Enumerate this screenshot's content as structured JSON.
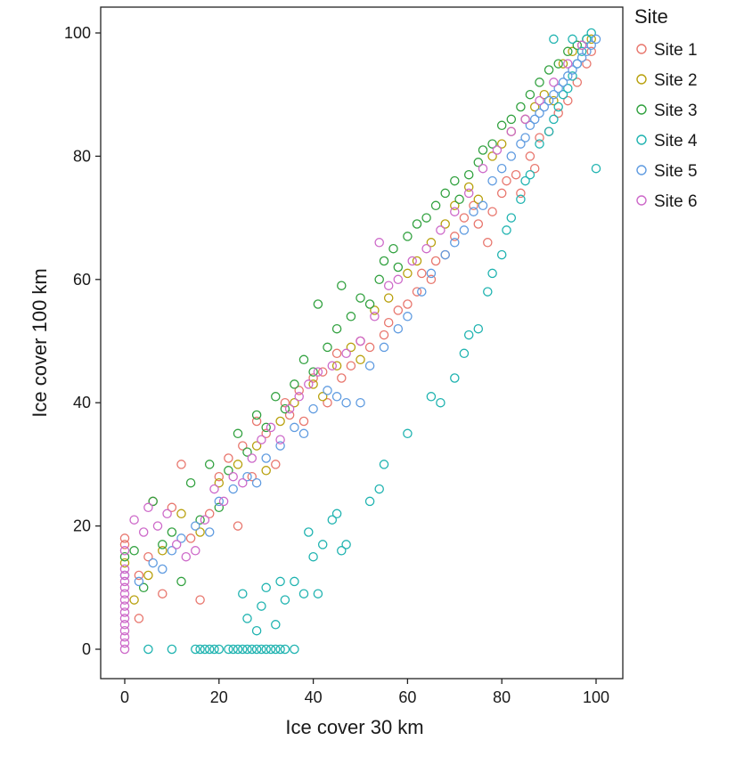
{
  "chart_data": {
    "type": "scatter",
    "xlabel": "Ice cover 30 km",
    "ylabel": "Ice cover 100 km",
    "xlim": [
      -5,
      105
    ],
    "ylim": [
      -5,
      105
    ],
    "xticks": [
      "0",
      "20",
      "40",
      "60",
      "80",
      "100"
    ],
    "yticks": [
      "0",
      "20",
      "40",
      "60",
      "80",
      "100"
    ],
    "grid": false,
    "marker": "open-circle",
    "legend": {
      "title": "Site",
      "placement": "right"
    },
    "series": [
      {
        "name": "Site 1",
        "color": "#e8766d",
        "points": [
          [
            0,
            18
          ],
          [
            0,
            17
          ],
          [
            3,
            12
          ],
          [
            3,
            5
          ],
          [
            5,
            15
          ],
          [
            6,
            24
          ],
          [
            8,
            9
          ],
          [
            10,
            23
          ],
          [
            12,
            30
          ],
          [
            14,
            18
          ],
          [
            16,
            8
          ],
          [
            18,
            22
          ],
          [
            20,
            28
          ],
          [
            22,
            31
          ],
          [
            24,
            20
          ],
          [
            25,
            33
          ],
          [
            27,
            28
          ],
          [
            28,
            37
          ],
          [
            30,
            35
          ],
          [
            32,
            30
          ],
          [
            34,
            40
          ],
          [
            35,
            38
          ],
          [
            37,
            42
          ],
          [
            38,
            37
          ],
          [
            40,
            44
          ],
          [
            42,
            45
          ],
          [
            43,
            40
          ],
          [
            45,
            48
          ],
          [
            46,
            44
          ],
          [
            48,
            46
          ],
          [
            50,
            50
          ],
          [
            52,
            49
          ],
          [
            55,
            51
          ],
          [
            56,
            53
          ],
          [
            58,
            55
          ],
          [
            60,
            56
          ],
          [
            62,
            58
          ],
          [
            63,
            61
          ],
          [
            65,
            60
          ],
          [
            66,
            63
          ],
          [
            68,
            64
          ],
          [
            70,
            67
          ],
          [
            72,
            70
          ],
          [
            74,
            72
          ],
          [
            75,
            69
          ],
          [
            77,
            66
          ],
          [
            78,
            71
          ],
          [
            80,
            74
          ],
          [
            81,
            76
          ],
          [
            83,
            77
          ],
          [
            84,
            74
          ],
          [
            86,
            80
          ],
          [
            87,
            78
          ],
          [
            88,
            83
          ],
          [
            90,
            84
          ],
          [
            92,
            87
          ],
          [
            94,
            89
          ],
          [
            96,
            92
          ],
          [
            98,
            95
          ],
          [
            99,
            97
          ]
        ]
      },
      {
        "name": "Site 2",
        "color": "#b8a00c",
        "points": [
          [
            0,
            14
          ],
          [
            2,
            8
          ],
          [
            5,
            12
          ],
          [
            8,
            16
          ],
          [
            12,
            22
          ],
          [
            16,
            19
          ],
          [
            20,
            27
          ],
          [
            24,
            30
          ],
          [
            28,
            33
          ],
          [
            30,
            29
          ],
          [
            33,
            37
          ],
          [
            36,
            40
          ],
          [
            40,
            43
          ],
          [
            42,
            41
          ],
          [
            45,
            46
          ],
          [
            48,
            49
          ],
          [
            50,
            47
          ],
          [
            53,
            55
          ],
          [
            56,
            57
          ],
          [
            60,
            61
          ],
          [
            62,
            63
          ],
          [
            65,
            66
          ],
          [
            68,
            69
          ],
          [
            70,
            72
          ],
          [
            73,
            75
          ],
          [
            75,
            73
          ],
          [
            78,
            80
          ],
          [
            80,
            82
          ],
          [
            82,
            84
          ],
          [
            85,
            86
          ],
          [
            87,
            88
          ],
          [
            89,
            90
          ],
          [
            91,
            89
          ],
          [
            93,
            95
          ],
          [
            95,
            97
          ],
          [
            97,
            98
          ],
          [
            99,
            99
          ]
        ]
      },
      {
        "name": "Site 3",
        "color": "#31a13f",
        "points": [
          [
            0,
            15
          ],
          [
            2,
            16
          ],
          [
            4,
            10
          ],
          [
            6,
            24
          ],
          [
            8,
            17
          ],
          [
            10,
            19
          ],
          [
            12,
            11
          ],
          [
            14,
            27
          ],
          [
            16,
            21
          ],
          [
            18,
            30
          ],
          [
            20,
            23
          ],
          [
            22,
            29
          ],
          [
            24,
            35
          ],
          [
            26,
            32
          ],
          [
            28,
            38
          ],
          [
            30,
            36
          ],
          [
            32,
            41
          ],
          [
            34,
            39
          ],
          [
            36,
            43
          ],
          [
            38,
            47
          ],
          [
            40,
            45
          ],
          [
            41,
            56
          ],
          [
            43,
            49
          ],
          [
            45,
            52
          ],
          [
            46,
            59
          ],
          [
            48,
            54
          ],
          [
            50,
            57
          ],
          [
            52,
            56
          ],
          [
            54,
            60
          ],
          [
            55,
            63
          ],
          [
            57,
            65
          ],
          [
            58,
            62
          ],
          [
            60,
            67
          ],
          [
            62,
            69
          ],
          [
            64,
            70
          ],
          [
            66,
            72
          ],
          [
            68,
            74
          ],
          [
            70,
            76
          ],
          [
            71,
            73
          ],
          [
            73,
            77
          ],
          [
            75,
            79
          ],
          [
            76,
            81
          ],
          [
            78,
            82
          ],
          [
            80,
            85
          ],
          [
            82,
            86
          ],
          [
            84,
            88
          ],
          [
            86,
            90
          ],
          [
            88,
            92
          ],
          [
            90,
            94
          ],
          [
            92,
            95
          ],
          [
            94,
            97
          ],
          [
            96,
            98
          ],
          [
            98,
            99
          ]
        ]
      },
      {
        "name": "Site 4",
        "color": "#1fb3b0",
        "points": [
          [
            5,
            0
          ],
          [
            10,
            0
          ],
          [
            15,
            0
          ],
          [
            16,
            0
          ],
          [
            17,
            0
          ],
          [
            18,
            0
          ],
          [
            19,
            0
          ],
          [
            20,
            0
          ],
          [
            22,
            0
          ],
          [
            23,
            0
          ],
          [
            24,
            0
          ],
          [
            25,
            0
          ],
          [
            26,
            0
          ],
          [
            27,
            0
          ],
          [
            28,
            0
          ],
          [
            29,
            0
          ],
          [
            30,
            0
          ],
          [
            31,
            0
          ],
          [
            32,
            0
          ],
          [
            33,
            0
          ],
          [
            34,
            0
          ],
          [
            36,
            0
          ],
          [
            25,
            9
          ],
          [
            26,
            5
          ],
          [
            28,
            3
          ],
          [
            29,
            7
          ],
          [
            30,
            10
          ],
          [
            32,
            4
          ],
          [
            33,
            11
          ],
          [
            34,
            8
          ],
          [
            36,
            11
          ],
          [
            38,
            9
          ],
          [
            39,
            19
          ],
          [
            40,
            15
          ],
          [
            41,
            9
          ],
          [
            42,
            17
          ],
          [
            44,
            21
          ],
          [
            45,
            22
          ],
          [
            46,
            16
          ],
          [
            47,
            17
          ],
          [
            52,
            24
          ],
          [
            54,
            26
          ],
          [
            55,
            30
          ],
          [
            60,
            35
          ],
          [
            65,
            41
          ],
          [
            67,
            40
          ],
          [
            70,
            44
          ],
          [
            72,
            48
          ],
          [
            73,
            51
          ],
          [
            75,
            52
          ],
          [
            77,
            58
          ],
          [
            78,
            61
          ],
          [
            80,
            64
          ],
          [
            81,
            68
          ],
          [
            82,
            70
          ],
          [
            84,
            73
          ],
          [
            85,
            76
          ],
          [
            86,
            77
          ],
          [
            88,
            82
          ],
          [
            90,
            84
          ],
          [
            91,
            86
          ],
          [
            92,
            88
          ],
          [
            93,
            90
          ],
          [
            94,
            91
          ],
          [
            95,
            93
          ],
          [
            96,
            95
          ],
          [
            97,
            97
          ],
          [
            98,
            99
          ],
          [
            99,
            100
          ],
          [
            100,
            78
          ],
          [
            95,
            99
          ],
          [
            91,
            99
          ]
        ]
      },
      {
        "name": "Site 5",
        "color": "#5f9be0",
        "points": [
          [
            0,
            12
          ],
          [
            3,
            11
          ],
          [
            6,
            14
          ],
          [
            8,
            13
          ],
          [
            10,
            16
          ],
          [
            12,
            18
          ],
          [
            15,
            20
          ],
          [
            18,
            19
          ],
          [
            20,
            24
          ],
          [
            23,
            26
          ],
          [
            26,
            28
          ],
          [
            28,
            27
          ],
          [
            30,
            31
          ],
          [
            33,
            33
          ],
          [
            36,
            36
          ],
          [
            38,
            35
          ],
          [
            40,
            39
          ],
          [
            43,
            42
          ],
          [
            45,
            41
          ],
          [
            47,
            40
          ],
          [
            50,
            40
          ],
          [
            52,
            46
          ],
          [
            55,
            49
          ],
          [
            58,
            52
          ],
          [
            60,
            54
          ],
          [
            63,
            58
          ],
          [
            65,
            61
          ],
          [
            68,
            64
          ],
          [
            70,
            66
          ],
          [
            72,
            68
          ],
          [
            74,
            71
          ],
          [
            76,
            72
          ],
          [
            78,
            76
          ],
          [
            80,
            78
          ],
          [
            82,
            80
          ],
          [
            84,
            82
          ],
          [
            85,
            83
          ],
          [
            86,
            85
          ],
          [
            87,
            86
          ],
          [
            88,
            87
          ],
          [
            89,
            88
          ],
          [
            90,
            89
          ],
          [
            91,
            90
          ],
          [
            92,
            91
          ],
          [
            93,
            92
          ],
          [
            94,
            93
          ],
          [
            95,
            94
          ],
          [
            96,
            95
          ],
          [
            97,
            96
          ],
          [
            98,
            97
          ],
          [
            99,
            98
          ],
          [
            100,
            99
          ]
        ]
      },
      {
        "name": "Site 6",
        "color": "#cd69c9",
        "points": [
          [
            0,
            0
          ],
          [
            0,
            1
          ],
          [
            0,
            2
          ],
          [
            0,
            3
          ],
          [
            0,
            4
          ],
          [
            0,
            5
          ],
          [
            0,
            6
          ],
          [
            0,
            7
          ],
          [
            0,
            8
          ],
          [
            0,
            9
          ],
          [
            0,
            10
          ],
          [
            0,
            11
          ],
          [
            0,
            12
          ],
          [
            0,
            13
          ],
          [
            0,
            16
          ],
          [
            2,
            21
          ],
          [
            4,
            19
          ],
          [
            5,
            23
          ],
          [
            7,
            20
          ],
          [
            9,
            22
          ],
          [
            11,
            17
          ],
          [
            13,
            15
          ],
          [
            15,
            16
          ],
          [
            17,
            21
          ],
          [
            19,
            26
          ],
          [
            21,
            24
          ],
          [
            23,
            28
          ],
          [
            25,
            27
          ],
          [
            27,
            31
          ],
          [
            29,
            34
          ],
          [
            31,
            36
          ],
          [
            33,
            34
          ],
          [
            35,
            39
          ],
          [
            37,
            41
          ],
          [
            39,
            43
          ],
          [
            41,
            45
          ],
          [
            44,
            46
          ],
          [
            47,
            48
          ],
          [
            50,
            50
          ],
          [
            53,
            54
          ],
          [
            54,
            66
          ],
          [
            56,
            59
          ],
          [
            58,
            60
          ],
          [
            61,
            63
          ],
          [
            64,
            65
          ],
          [
            67,
            68
          ],
          [
            70,
            71
          ],
          [
            73,
            74
          ],
          [
            76,
            78
          ],
          [
            79,
            81
          ],
          [
            82,
            84
          ],
          [
            85,
            86
          ],
          [
            88,
            89
          ],
          [
            91,
            92
          ],
          [
            94,
            95
          ],
          [
            97,
            98
          ]
        ]
      }
    ]
  }
}
